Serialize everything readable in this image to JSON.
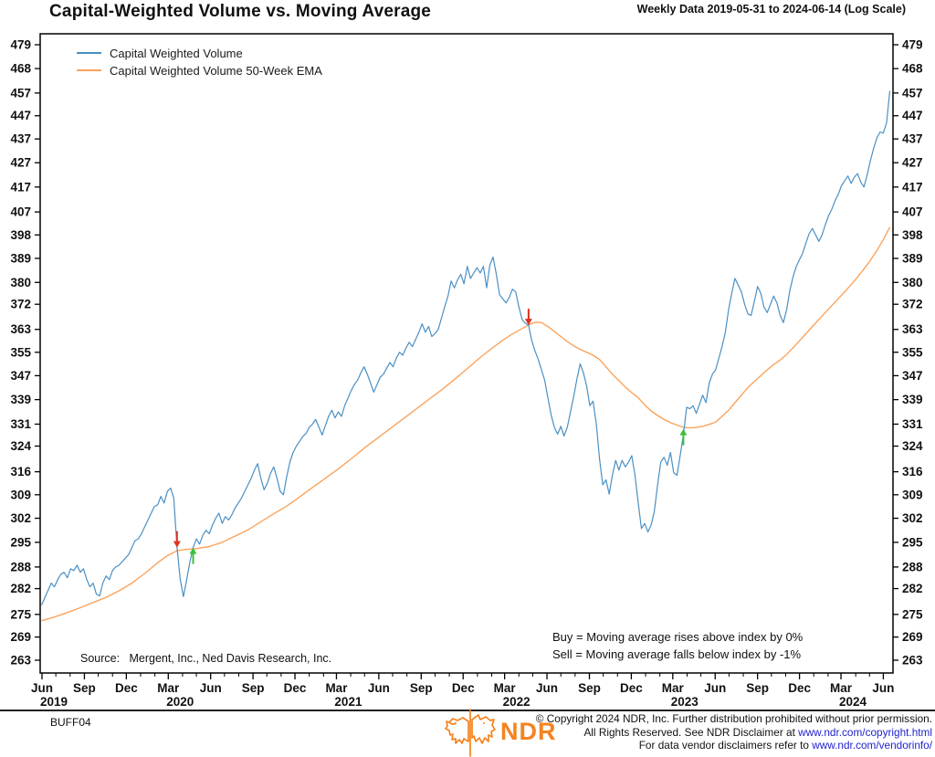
{
  "title": "Capital-Weighted Volume vs. Moving Average",
  "subtitle": "Weekly Data 2019-05-31 to 2024-06-14 (Log Scale)",
  "annotations": {
    "buy_line": "Buy = Moving average rises above index by 0%",
    "sell_line": "Sell = Moving average falls below index by -1%",
    "source_line": "Source:   Mergent, Inc., Ned Davis Research, Inc."
  },
  "chart_id": "BUFF04",
  "footer": {
    "logo_text": "NDR",
    "line1": "© Copyright 2024 NDR, Inc. Further distribution prohibited without prior permission.",
    "line2_prefix": "All Rights Reserved. See NDR Disclaimer at ",
    "line2_link": "www.ndr.com/copyright.html",
    "line3_prefix": "For data vendor disclaimers refer to ",
    "line3_link": "www.ndr.com/vendorinfo/"
  },
  "colors": {
    "index_blue": "#4a90c4",
    "ema_orange": "#fba35c",
    "sell_red": "#e0301e",
    "buy_green": "#3dbf3d",
    "frame": "#000000",
    "link_blue": "#2222cc",
    "logo_orange": "#f5831f"
  },
  "chart_data": {
    "type": "line",
    "scale": "log",
    "x_unit": "weeks",
    "start_date": "2019-05-31",
    "end_date": "2024-06-14",
    "title": "Capital-Weighted Volume vs. Moving Average",
    "ylim": [
      260,
      483
    ],
    "y_ticks": [
      479,
      468,
      457,
      447,
      437,
      427,
      417,
      407,
      398,
      389,
      380,
      372,
      363,
      355,
      347,
      339,
      331,
      324,
      316,
      309,
      302,
      295,
      288,
      282,
      275,
      269,
      263
    ],
    "x_ticks": [
      {
        "label": "Jun",
        "year": "2019",
        "week": 0.14
      },
      {
        "label": "Sep",
        "week": 13.29
      },
      {
        "label": "Dec",
        "week": 26.29
      },
      {
        "label": "Mar",
        "year": "2020",
        "week": 39.29
      },
      {
        "label": "Jun",
        "week": 52.43
      },
      {
        "label": "Sep",
        "week": 65.57
      },
      {
        "label": "Dec",
        "week": 78.57
      },
      {
        "label": "Mar",
        "year": "2021",
        "week": 91.43
      },
      {
        "label": "Jun",
        "week": 104.57
      },
      {
        "label": "Sep",
        "week": 117.71
      },
      {
        "label": "Dec",
        "week": 130.71
      },
      {
        "label": "Mar",
        "year": "2022",
        "week": 143.57
      },
      {
        "label": "Jun",
        "week": 156.71
      },
      {
        "label": "Sep",
        "week": 169.86
      },
      {
        "label": "Dec",
        "week": 182.86
      },
      {
        "label": "Mar",
        "year": "2023",
        "week": 195.71
      },
      {
        "label": "Jun",
        "week": 208.86
      },
      {
        "label": "Sep",
        "week": 222.0
      },
      {
        "label": "Dec",
        "week": 235.0
      },
      {
        "label": "Mar",
        "year": "2024",
        "week": 247.86
      },
      {
        "label": "Jun",
        "week": 261.0
      }
    ],
    "series": [
      {
        "name": "Capital Weighted Volume",
        "color": "#4a90c4",
        "sampling": "weekly_from_week_0",
        "values": [
          277.5,
          279.5,
          281.5,
          283.5,
          282.5,
          284.5,
          286,
          286.5,
          285,
          287.5,
          287,
          288.5,
          286.5,
          287.5,
          284.5,
          282.5,
          283.5,
          280.5,
          280,
          283.5,
          285.5,
          284.5,
          287,
          288,
          288.5,
          289.5,
          290.5,
          291.5,
          293.5,
          295.5,
          296,
          297.5,
          299.5,
          301.5,
          303.5,
          305.5,
          306,
          308.5,
          306.5,
          310,
          311,
          308,
          293.5,
          284.5,
          279.8,
          284.5,
          289.5,
          293.5,
          296,
          294.5,
          297,
          298.5,
          297.5,
          300,
          302,
          303.5,
          300.5,
          302.5,
          301.5,
          303,
          305,
          306.5,
          308,
          310,
          312,
          314,
          316.5,
          318.5,
          314,
          310.5,
          312.5,
          315.5,
          317.5,
          314,
          310,
          309,
          314.5,
          319,
          322,
          324,
          325.5,
          327,
          328,
          330,
          331,
          332.5,
          330,
          327.5,
          330.5,
          333.5,
          335.5,
          333,
          335,
          333.5,
          337,
          339.5,
          342,
          344,
          345.5,
          348,
          350,
          347.5,
          344.5,
          341.5,
          344,
          346.5,
          347.5,
          349.5,
          351.5,
          350,
          353,
          355,
          354,
          356.5,
          358.5,
          357,
          359.5,
          362,
          365,
          362,
          364,
          360.5,
          361.5,
          363,
          367,
          371,
          375,
          380.5,
          378,
          381,
          383,
          379.5,
          386,
          381.5,
          383.5,
          385.5,
          383.5,
          386,
          378,
          386.5,
          389.5,
          383,
          375.5,
          374,
          372.5,
          374.5,
          377.5,
          376.5,
          371,
          366.5,
          365.2,
          364.5,
          359,
          355.5,
          352.5,
          349,
          345.5,
          339.5,
          334,
          330,
          327.8,
          330.3,
          327.2,
          330,
          335,
          340,
          346,
          351,
          348,
          343.5,
          337,
          338.5,
          331,
          320,
          312,
          313.5,
          309.2,
          315,
          319.5,
          316.5,
          319.5,
          317.5,
          319,
          321,
          315,
          306.5,
          299,
          300.5,
          298,
          300,
          304,
          312,
          319,
          320.5,
          318,
          322,
          315.7,
          314.9,
          321,
          327.5,
          336.5,
          336,
          337,
          334.5,
          337.5,
          340.5,
          338,
          344.5,
          347.5,
          349,
          353,
          357,
          362,
          370,
          376,
          381.5,
          379,
          376.5,
          372,
          368.5,
          368,
          373,
          378.5,
          376,
          371,
          369,
          372,
          375,
          372.5,
          368,
          365.4,
          370,
          377,
          382,
          386,
          388.5,
          391,
          395,
          398.5,
          400.5,
          398,
          395.5,
          398,
          402,
          405.5,
          408,
          411.5,
          414,
          417.5,
          419.5,
          421.5,
          418.5,
          421,
          422.5,
          419,
          417,
          422,
          428,
          433,
          437.5,
          440,
          439.5,
          444,
          458
        ]
      },
      {
        "name": "Capital Weighted Volume 50-Week EMA",
        "color": "#fba35c",
        "sampling": "week_value_pairs",
        "points": [
          [
            0,
            273.3
          ],
          [
            4,
            274.3
          ],
          [
            8,
            275.5
          ],
          [
            12,
            276.8
          ],
          [
            16,
            278.2
          ],
          [
            20,
            279.6
          ],
          [
            24,
            281.4
          ],
          [
            28,
            283.5
          ],
          [
            32,
            286.2
          ],
          [
            36,
            289.2
          ],
          [
            39,
            291.2
          ],
          [
            42,
            292.6
          ],
          [
            45,
            293.0
          ],
          [
            48,
            293.2
          ],
          [
            52,
            293.8
          ],
          [
            56,
            295.0
          ],
          [
            60,
            296.8
          ],
          [
            64,
            298.6
          ],
          [
            68,
            301.0
          ],
          [
            72,
            303.3
          ],
          [
            76,
            305.6
          ],
          [
            80,
            308.3
          ],
          [
            84,
            311.2
          ],
          [
            88,
            314.0
          ],
          [
            92,
            316.9
          ],
          [
            96,
            320.0
          ],
          [
            100,
            323.3
          ],
          [
            104,
            326.4
          ],
          [
            108,
            329.5
          ],
          [
            112,
            332.6
          ],
          [
            116,
            335.8
          ],
          [
            120,
            339.0
          ],
          [
            124,
            342.2
          ],
          [
            128,
            345.7
          ],
          [
            132,
            349.4
          ],
          [
            136,
            353.2
          ],
          [
            140,
            356.7
          ],
          [
            143,
            359.2
          ],
          [
            146,
            361.4
          ],
          [
            149,
            363.3
          ],
          [
            151,
            364.6
          ],
          [
            153,
            365.5
          ],
          [
            155,
            365.4
          ],
          [
            157,
            364.0
          ],
          [
            159,
            362.3
          ],
          [
            161,
            360.5
          ],
          [
            163,
            358.7
          ],
          [
            165,
            357.2
          ],
          [
            167,
            356.0
          ],
          [
            169,
            355.0
          ],
          [
            171,
            354.0
          ],
          [
            173,
            352.5
          ],
          [
            175,
            350.0
          ],
          [
            177,
            347.5
          ],
          [
            179,
            345.3
          ],
          [
            181,
            343.2
          ],
          [
            183,
            341.3
          ],
          [
            185,
            339.6
          ],
          [
            187,
            337.3
          ],
          [
            189,
            335.3
          ],
          [
            191,
            333.8
          ],
          [
            193,
            332.5
          ],
          [
            195,
            331.5
          ],
          [
            197,
            330.7
          ],
          [
            199,
            330.0
          ],
          [
            201,
            329.8
          ],
          [
            203,
            329.9
          ],
          [
            205,
            330.3
          ],
          [
            207,
            330.9
          ],
          [
            209,
            331.7
          ],
          [
            211,
            333.5
          ],
          [
            213,
            335.5
          ],
          [
            215,
            338.0
          ],
          [
            217,
            340.5
          ],
          [
            219,
            343.0
          ],
          [
            221,
            345.0
          ],
          [
            223,
            347.0
          ],
          [
            225,
            349.0
          ],
          [
            227,
            350.8
          ],
          [
            229,
            352.3
          ],
          [
            231,
            354.3
          ],
          [
            233,
            356.5
          ],
          [
            235,
            359.0
          ],
          [
            237,
            361.5
          ],
          [
            239,
            364.0
          ],
          [
            241,
            366.5
          ],
          [
            243,
            369.0
          ],
          [
            245,
            371.5
          ],
          [
            247,
            374.0
          ],
          [
            249,
            376.5
          ],
          [
            251,
            379.2
          ],
          [
            253,
            382.0
          ],
          [
            255,
            385.0
          ],
          [
            257,
            388.3
          ],
          [
            259,
            392.0
          ],
          [
            261,
            396.2
          ],
          [
            263,
            401.0
          ]
        ]
      }
    ],
    "signals": [
      {
        "type": "sell",
        "week": 42,
        "value": 293.5
      },
      {
        "type": "buy",
        "week": 47,
        "value": 293.5
      },
      {
        "type": "sell",
        "week": 151,
        "value": 364.5
      },
      {
        "type": "buy",
        "week": 199,
        "value": 329.5
      }
    ],
    "legend_position": "top-left-inside",
    "grid": false
  }
}
